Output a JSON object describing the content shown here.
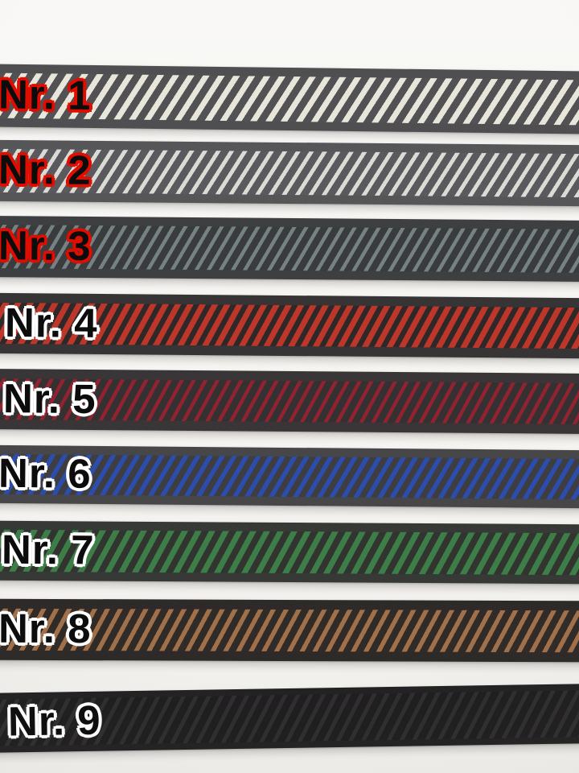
{
  "photo": {
    "background_top": "#f9f8f6",
    "background_bottom": "#efeeeb"
  },
  "ribbons": [
    {
      "label": "Nr. 1",
      "outline_color": "#e00d00",
      "edge_color": "#4f4f51",
      "stripe_color": "#e8e6db",
      "weave_bg": "#525255"
    },
    {
      "label": "Nr. 2",
      "outline_color": "#e00d00",
      "edge_color": "#565659",
      "stripe_color": "#dbdad5",
      "weave_bg": "#5a5a5e"
    },
    {
      "label": "Nr. 3",
      "outline_color": "#e00d00",
      "edge_color": "#3e3f41",
      "stripe_color": "#768183",
      "weave_bg": "#3a3b3d"
    },
    {
      "label": "Nr. 4",
      "outline_color": "#ffffff",
      "edge_color": "#373435",
      "stripe_color": "#bc3629",
      "weave_bg": "#2e2829"
    },
    {
      "label": "Nr. 5",
      "outline_color": "#ffffff",
      "edge_color": "#3a3637",
      "stripe_color": "#90232f",
      "weave_bg": "#353132"
    },
    {
      "label": "Nr. 6",
      "outline_color": "#ffffff",
      "edge_color": "#47474a",
      "stripe_color": "#2b4dad",
      "weave_bg": "#3e3e42"
    },
    {
      "label": "Nr. 7",
      "outline_color": "#ffffff",
      "edge_color": "#363936",
      "stripe_color": "#3d7d48",
      "weave_bg": "#323430"
    },
    {
      "label": "Nr. 8",
      "outline_color": "#ffffff",
      "edge_color": "#2e2a29",
      "stripe_color": "#a0704a",
      "weave_bg": "#312b28"
    },
    {
      "label": "Nr. 9",
      "outline_color": "#ffffff",
      "edge_color": "#232223",
      "stripe_color": "#2f2e2f",
      "weave_bg": "#1f1e1f"
    }
  ]
}
